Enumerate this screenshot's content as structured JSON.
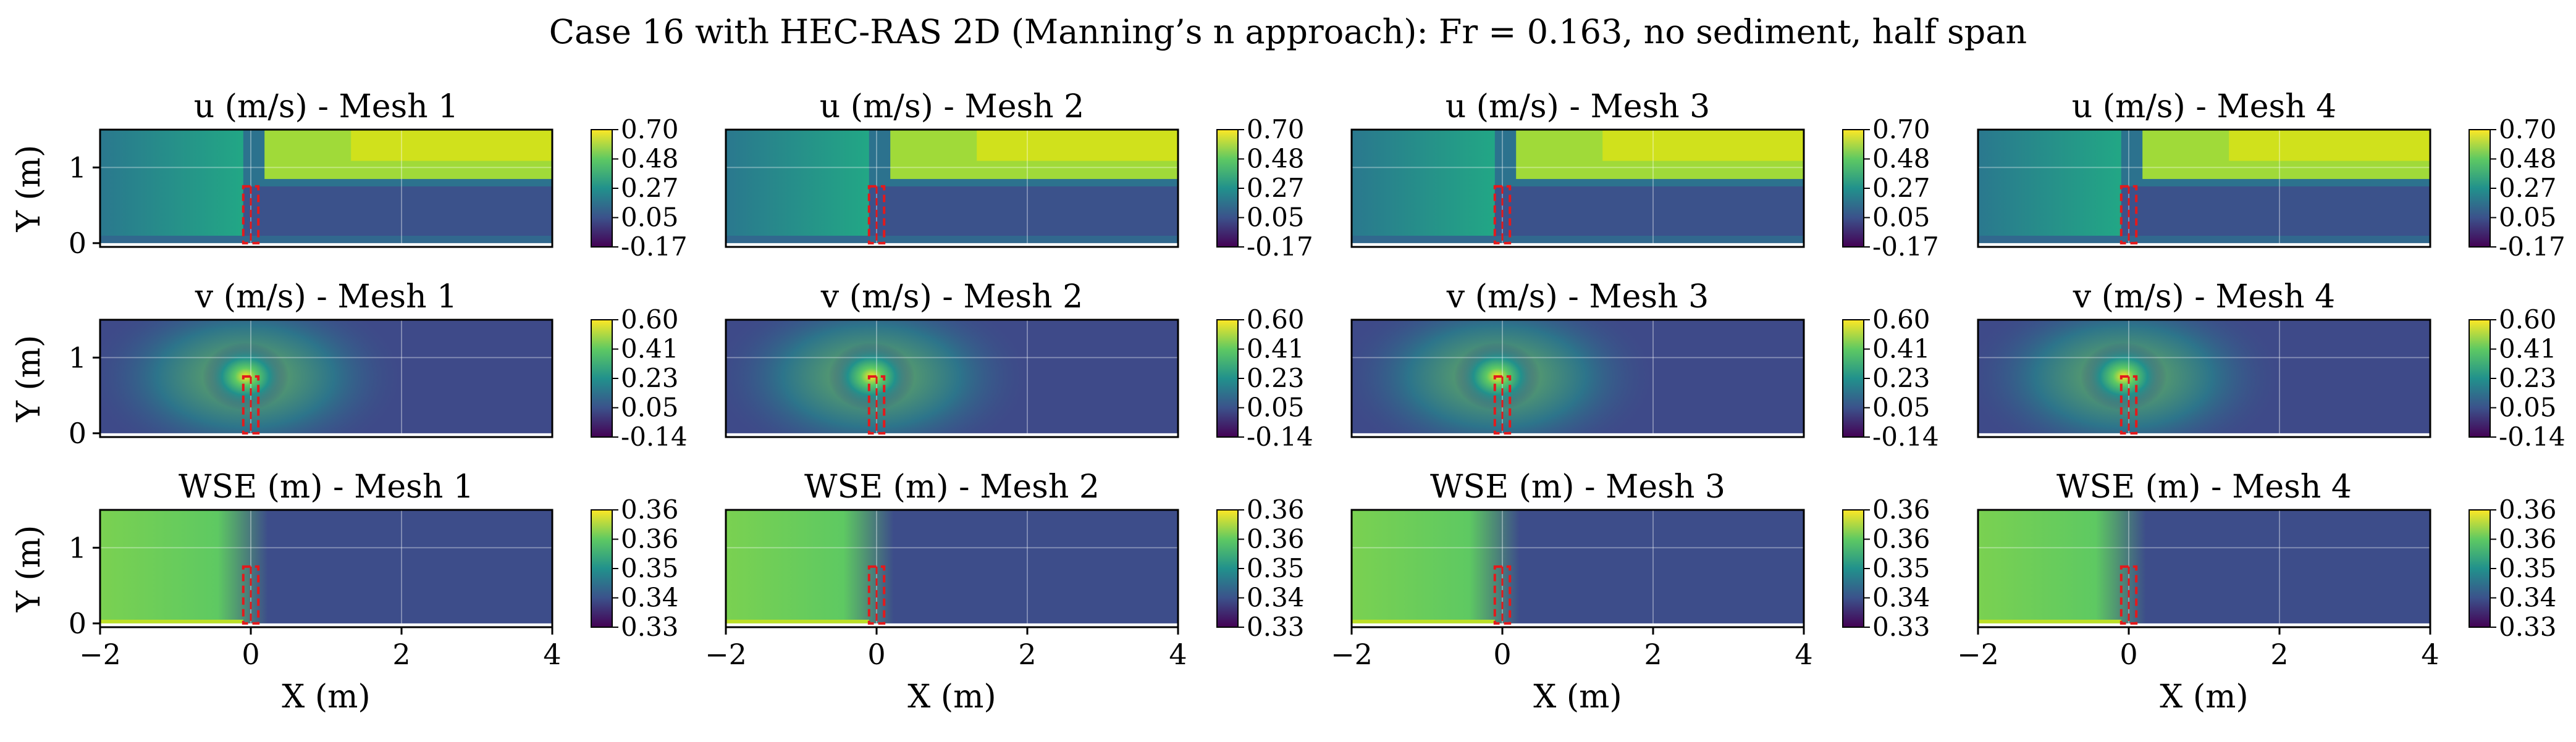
{
  "figure": {
    "title": "Case 16 with HEC-RAS 2D (Manning’s n approach): Fr = 0.163, no sediment, half span"
  },
  "axes": {
    "xlabel": "X (m)",
    "ylabel": "Y (m)",
    "xlim": [
      -2,
      4
    ],
    "ylim": [
      -0.05,
      1.5
    ],
    "xticks": [
      "−2",
      "0",
      "2",
      "4"
    ],
    "yticks": [
      "0",
      "1"
    ]
  },
  "rows": [
    {
      "id": "u",
      "colorbar_ticks": [
        "0.70",
        "0.48",
        "0.27",
        "0.05",
        "-0.17"
      ],
      "panels": [
        {
          "title": "u (m/s) - Mesh 1"
        },
        {
          "title": "u (m/s) - Mesh 2"
        },
        {
          "title": "u (m/s) - Mesh 3"
        },
        {
          "title": "u (m/s) - Mesh 4"
        }
      ]
    },
    {
      "id": "v",
      "colorbar_ticks": [
        "0.60",
        "0.41",
        "0.23",
        "0.05",
        "-0.14"
      ],
      "panels": [
        {
          "title": "v (m/s) - Mesh 1"
        },
        {
          "title": "v (m/s) - Mesh 2"
        },
        {
          "title": "v (m/s) - Mesh 3"
        },
        {
          "title": "v (m/s) - Mesh 4"
        }
      ]
    },
    {
      "id": "wse",
      "colorbar_ticks": [
        "0.36",
        "0.36",
        "0.35",
        "0.34",
        "0.33"
      ],
      "panels": [
        {
          "title": "WSE (m) - Mesh 1"
        },
        {
          "title": "WSE (m) - Mesh 2"
        },
        {
          "title": "WSE (m) - Mesh 3"
        },
        {
          "title": "WSE (m) - Mesh 4"
        }
      ]
    }
  ],
  "colors": {
    "viridis": [
      "#440154",
      "#3b528b",
      "#21918c",
      "#5ec962",
      "#fde725"
    ],
    "pier_outline": "#e31a1c",
    "background_field_u": "#2c728e",
    "background_field_v": "#3e4a89",
    "background_field_wse": "#3d4d8a"
  },
  "chart_data": {
    "type": "heatmap",
    "title": "Case 16 with HEC-RAS 2D (Manning’s n approach): Fr = 0.163, no sediment, half span",
    "xlabel": "X (m)",
    "ylabel": "Y (m)",
    "xlim": [
      -2,
      4
    ],
    "ylim": [
      -0.05,
      1.5
    ],
    "grid": true,
    "pier": {
      "x": [
        -0.1,
        0.1
      ],
      "y": [
        -0.05,
        0.75
      ]
    },
    "fields": [
      {
        "variable": "u (m/s)",
        "color_range": [
          -0.17,
          0.7
        ],
        "meshes": [
          1,
          2,
          3,
          4
        ]
      },
      {
        "variable": "v (m/s)",
        "color_range": [
          -0.14,
          0.6
        ],
        "meshes": [
          1,
          2,
          3,
          4
        ]
      },
      {
        "variable": "WSE (m)",
        "color_range": [
          0.33,
          0.36
        ],
        "meshes": [
          1,
          2,
          3,
          4
        ]
      }
    ]
  }
}
